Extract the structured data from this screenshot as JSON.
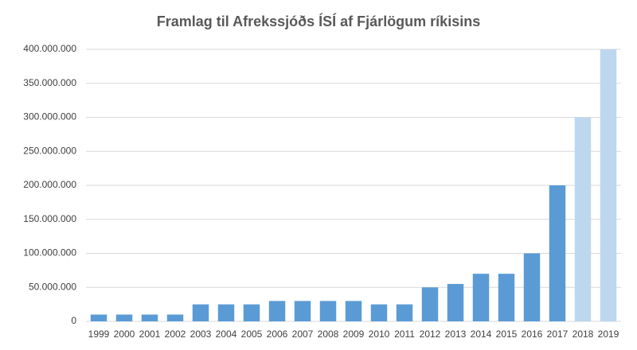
{
  "chart_data": {
    "type": "bar",
    "title": "Framlag til Afrekssjóðs ÍSÍ af Fjárlögum ríkisins",
    "categories": [
      "1999",
      "2000",
      "2001",
      "2002",
      "2003",
      "2004",
      "2005",
      "2006",
      "2007",
      "2008",
      "2009",
      "2010",
      "2011",
      "2012",
      "2013",
      "2014",
      "2015",
      "2016",
      "2017",
      "2018",
      "2019"
    ],
    "values": [
      10000000,
      10000000,
      10000000,
      10000000,
      25000000,
      25000000,
      25000000,
      30000000,
      30000000,
      30000000,
      30000000,
      25000000,
      25000000,
      50000000,
      55000000,
      70000000,
      70000000,
      100000000,
      200000000,
      300000000,
      400000000
    ],
    "colors": [
      "#5b9bd5",
      "#5b9bd5",
      "#5b9bd5",
      "#5b9bd5",
      "#5b9bd5",
      "#5b9bd5",
      "#5b9bd5",
      "#5b9bd5",
      "#5b9bd5",
      "#5b9bd5",
      "#5b9bd5",
      "#5b9bd5",
      "#5b9bd5",
      "#5b9bd5",
      "#5b9bd5",
      "#5b9bd5",
      "#5b9bd5",
      "#5b9bd5",
      "#5b9bd5",
      "#bdd7ee",
      "#bdd7ee"
    ],
    "ylim": [
      0,
      400000000
    ],
    "yticks": [
      0,
      {
        "value": 50000000,
        "label": "50.000.000"
      },
      {
        "value": 100000000,
        "label": "100.000.000"
      },
      {
        "value": 150000000,
        "label": "150.000.000"
      },
      {
        "value": 200000000,
        "label": "200.000.000"
      },
      {
        "value": 250000000,
        "label": "250.000.000"
      },
      {
        "value": 300000000,
        "label": "300.000.000"
      },
      {
        "value": 350000000,
        "label": "350.000.000"
      },
      {
        "value": 400000000,
        "label": "400.000.000"
      }
    ],
    "grid": true
  }
}
